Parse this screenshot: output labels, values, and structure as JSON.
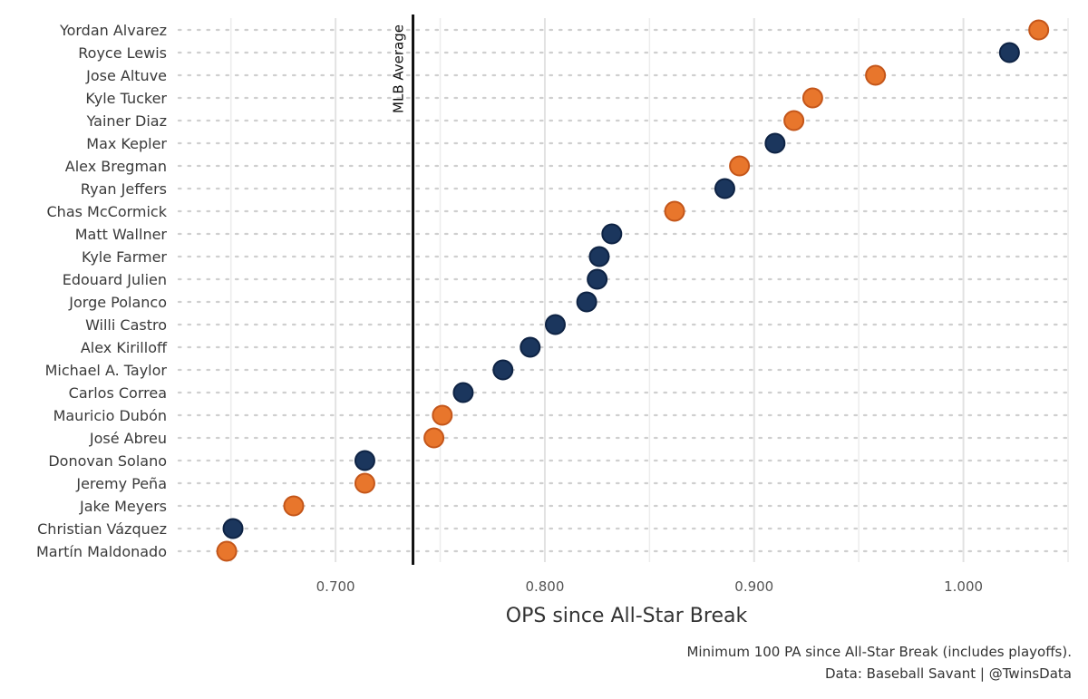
{
  "chart_data": {
    "type": "scatter",
    "xlabel": "OPS since All-Star Break",
    "x_ticks": [
      "0.700",
      "0.800",
      "0.900",
      "1.000"
    ],
    "x_tick_values": [
      0.7,
      0.8,
      0.9,
      1.0
    ],
    "xlim": [
      0.625,
      1.05
    ],
    "grid": true,
    "reference_line": {
      "value": 0.737,
      "label": "MLB Average"
    },
    "colors": {
      "orange": "#E8762C",
      "orange_edge": "#C4561A",
      "navy": "#1B365D",
      "navy_edge": "#0E2344"
    },
    "points": [
      {
        "name": "Yordan Alvarez",
        "ops": 1.036,
        "color": "orange"
      },
      {
        "name": "Royce Lewis",
        "ops": 1.022,
        "color": "navy"
      },
      {
        "name": "Jose Altuve",
        "ops": 0.958,
        "color": "orange"
      },
      {
        "name": "Kyle Tucker",
        "ops": 0.928,
        "color": "orange"
      },
      {
        "name": "Yainer Diaz",
        "ops": 0.919,
        "color": "orange"
      },
      {
        "name": "Max Kepler",
        "ops": 0.91,
        "color": "navy"
      },
      {
        "name": "Alex Bregman",
        "ops": 0.893,
        "color": "orange"
      },
      {
        "name": "Ryan Jeffers",
        "ops": 0.886,
        "color": "navy"
      },
      {
        "name": "Chas McCormick",
        "ops": 0.862,
        "color": "orange"
      },
      {
        "name": "Matt Wallner",
        "ops": 0.832,
        "color": "navy"
      },
      {
        "name": "Kyle Farmer",
        "ops": 0.826,
        "color": "navy"
      },
      {
        "name": "Edouard Julien",
        "ops": 0.825,
        "color": "navy"
      },
      {
        "name": "Jorge Polanco",
        "ops": 0.82,
        "color": "navy"
      },
      {
        "name": "Willi Castro",
        "ops": 0.805,
        "color": "navy"
      },
      {
        "name": "Alex Kirilloff",
        "ops": 0.793,
        "color": "navy"
      },
      {
        "name": "Michael A. Taylor",
        "ops": 0.78,
        "color": "navy"
      },
      {
        "name": "Carlos Correa",
        "ops": 0.761,
        "color": "navy"
      },
      {
        "name": "Mauricio Dubón",
        "ops": 0.751,
        "color": "orange"
      },
      {
        "name": "José Abreu",
        "ops": 0.747,
        "color": "orange"
      },
      {
        "name": "Donovan Solano",
        "ops": 0.714,
        "color": "navy"
      },
      {
        "name": "Jeremy Peña",
        "ops": 0.714,
        "color": "orange"
      },
      {
        "name": "Jake Meyers",
        "ops": 0.68,
        "color": "orange"
      },
      {
        "name": "Christian Vázquez",
        "ops": 0.651,
        "color": "navy"
      },
      {
        "name": "Martín Maldonado",
        "ops": 0.648,
        "color": "orange"
      }
    ]
  },
  "caption": {
    "line1": "Minimum 100 PA since All-Star Break (includes playoffs).",
    "line2": "Data: Baseball Savant | @TwinsData"
  }
}
